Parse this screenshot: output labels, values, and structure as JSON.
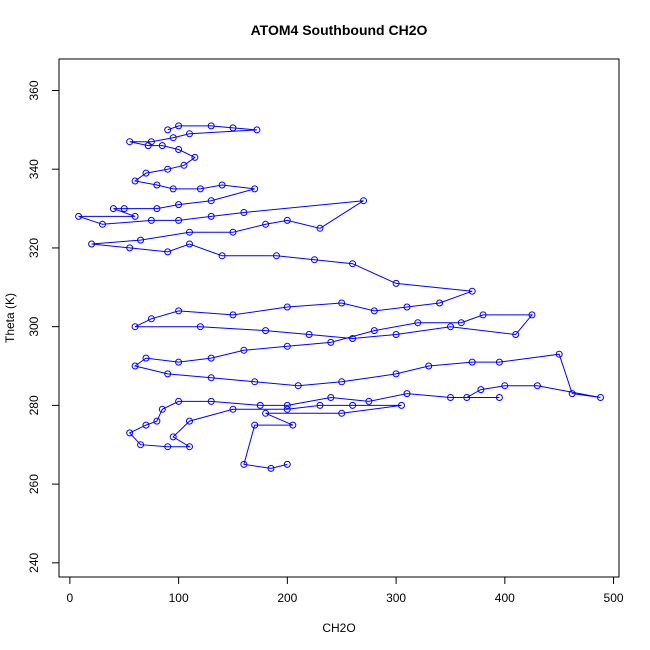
{
  "chart_data": {
    "type": "line",
    "title": "ATOM4 Southbound CH2O",
    "xlabel": "CH2O",
    "ylabel": "Theta (K)",
    "xlim": [
      -10,
      505
    ],
    "ylim": [
      236.4,
      368
    ],
    "xticks": [
      0,
      100,
      200,
      300,
      400,
      500
    ],
    "yticks": [
      240,
      260,
      280,
      300,
      320,
      340,
      360
    ],
    "markers": "open circles joined by lines",
    "grid": false,
    "legend": "none",
    "series_color": "#0000ff",
    "series": [
      {
        "points": [
          [
            90,
            350
          ],
          [
            100,
            351
          ],
          [
            130,
            351
          ],
          [
            150,
            350.5
          ],
          [
            172,
            350
          ],
          [
            110,
            349
          ],
          [
            95,
            348
          ],
          [
            75,
            347
          ],
          [
            55,
            347
          ],
          [
            72,
            346
          ],
          [
            85,
            346
          ],
          [
            100,
            345
          ],
          [
            115,
            343
          ],
          [
            105,
            341
          ],
          [
            90,
            340
          ],
          [
            70,
            339
          ],
          [
            60,
            337
          ],
          [
            80,
            336
          ],
          [
            95,
            335
          ],
          [
            120,
            335
          ],
          [
            140,
            336
          ],
          [
            170,
            335
          ],
          [
            130,
            332
          ],
          [
            100,
            331
          ],
          [
            80,
            330
          ],
          [
            50,
            330
          ],
          [
            40,
            330
          ],
          [
            60,
            328
          ],
          [
            8,
            328
          ],
          [
            30,
            326
          ],
          [
            75,
            327
          ],
          [
            100,
            327
          ],
          [
            130,
            328
          ],
          [
            160,
            329
          ],
          [
            270,
            332
          ],
          [
            230,
            325
          ],
          [
            200,
            327
          ],
          [
            180,
            326
          ],
          [
            150,
            324
          ],
          [
            110,
            324
          ],
          [
            65,
            322
          ],
          [
            20,
            321
          ],
          [
            55,
            320
          ],
          [
            90,
            319
          ],
          [
            110,
            321
          ],
          [
            140,
            318
          ],
          [
            190,
            318
          ],
          [
            225,
            317
          ],
          [
            260,
            316
          ],
          [
            300,
            311
          ],
          [
            370,
            309
          ],
          [
            340,
            306
          ],
          [
            310,
            305
          ],
          [
            280,
            304
          ],
          [
            250,
            306
          ],
          [
            200,
            305
          ],
          [
            150,
            303
          ],
          [
            100,
            304
          ],
          [
            75,
            302
          ],
          [
            60,
            300
          ],
          [
            120,
            300
          ],
          [
            180,
            299
          ],
          [
            220,
            298
          ],
          [
            260,
            297
          ],
          [
            300,
            298
          ],
          [
            350,
            300
          ],
          [
            410,
            298
          ],
          [
            425,
            303
          ],
          [
            380,
            303
          ],
          [
            360,
            301
          ],
          [
            320,
            301
          ],
          [
            280,
            299
          ],
          [
            240,
            296
          ],
          [
            200,
            295
          ],
          [
            160,
            294
          ],
          [
            130,
            292
          ],
          [
            100,
            291
          ],
          [
            70,
            292
          ],
          [
            60,
            290
          ],
          [
            90,
            288
          ],
          [
            130,
            287
          ],
          [
            170,
            286
          ],
          [
            210,
            285
          ],
          [
            250,
            286
          ],
          [
            300,
            288
          ],
          [
            330,
            290
          ],
          [
            370,
            291
          ],
          [
            395,
            291
          ],
          [
            450,
            293
          ],
          [
            462,
            283
          ],
          [
            488,
            282
          ],
          [
            430,
            285
          ],
          [
            400,
            285
          ],
          [
            378,
            284
          ],
          [
            365,
            282
          ],
          [
            395,
            282
          ],
          [
            350,
            282
          ],
          [
            310,
            283
          ],
          [
            275,
            281
          ],
          [
            240,
            282
          ],
          [
            200,
            280
          ],
          [
            175,
            280
          ],
          [
            130,
            281
          ],
          [
            100,
            281
          ],
          [
            85,
            279
          ],
          [
            80,
            276
          ],
          [
            70,
            275
          ],
          [
            55,
            273
          ],
          [
            65,
            270
          ],
          [
            90,
            269.5
          ],
          [
            110,
            269.5
          ],
          [
            95,
            272
          ],
          [
            110,
            276
          ],
          [
            150,
            279
          ],
          [
            200,
            279
          ],
          [
            230,
            280
          ],
          [
            260,
            280
          ],
          [
            305,
            280
          ],
          [
            250,
            278
          ],
          [
            180,
            278
          ],
          [
            205,
            275
          ],
          [
            170,
            275
          ],
          [
            160,
            265
          ],
          [
            185,
            264
          ],
          [
            200,
            265
          ]
        ]
      }
    ]
  }
}
